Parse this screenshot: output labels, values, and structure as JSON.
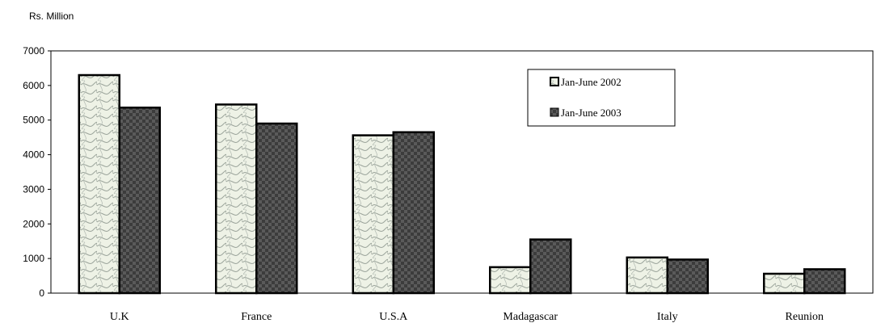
{
  "chart_data": {
    "type": "bar",
    "title": "",
    "ylabel": "Rs. Million",
    "xlabel": "",
    "categories": [
      "U.K",
      "France",
      "U.S.A",
      "Madagascar",
      "Italy",
      "Reunion"
    ],
    "series": [
      {
        "name": "Jan-June 2002",
        "values": [
          6300,
          5450,
          4560,
          750,
          1030,
          560
        ],
        "color": "#eef2e6",
        "pattern": "light-wave"
      },
      {
        "name": "Jan-June 2003",
        "values": [
          5360,
          4900,
          4650,
          1550,
          970,
          690
        ],
        "color": "#4a4a4a",
        "pattern": "dark-check"
      }
    ],
    "ylim": [
      0,
      7000
    ],
    "yticks": [
      0,
      1000,
      2000,
      3000,
      4000,
      5000,
      6000,
      7000
    ],
    "grid": false,
    "legend_position": "top-right"
  }
}
